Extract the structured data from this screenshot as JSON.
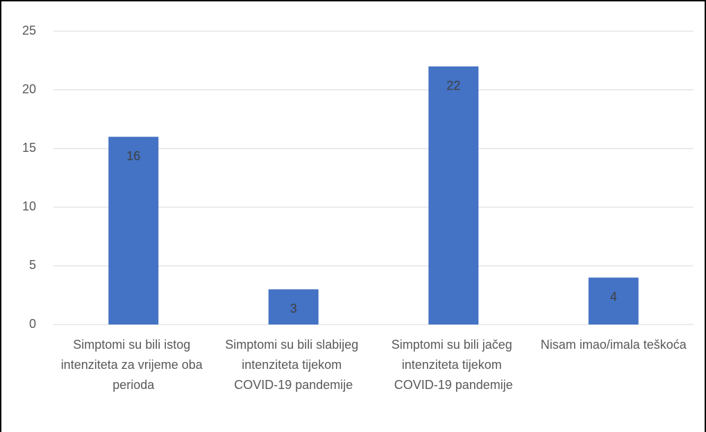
{
  "chart_data": {
    "type": "bar",
    "categories": [
      "Simptomi su bili istog intenziteta za vrijeme oba perioda",
      "Simptomi su bili slabijeg intenziteta tijekom COVID-19 pandemije",
      "Simptomi su bili jačeg intenziteta tijekom COVID-19 pandemije",
      "Nisam imao/imala teškoća"
    ],
    "values": [
      16,
      3,
      22,
      4
    ],
    "color": "#4472c4",
    "ylim": [
      0,
      25
    ],
    "yticks": [
      0,
      5,
      10,
      15,
      20,
      25
    ],
    "grid": true
  }
}
